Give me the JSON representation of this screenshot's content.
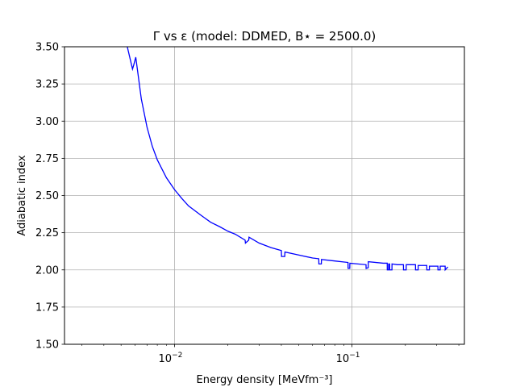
{
  "chart_data": {
    "type": "line",
    "title": "Γ vs ε (model: DDMED, B⋆ = 2500.0)",
    "xlabel": "Energy density [MeVfm⁻³]",
    "ylabel": "Adiabatic index",
    "xscale": "log",
    "xlim": [
      0.0024,
      0.43
    ],
    "ylim": [
      1.5,
      3.5
    ],
    "grid": true,
    "x_ticks": [
      {
        "value": 0.01,
        "base": "10",
        "exp": "−2"
      },
      {
        "value": 0.1,
        "base": "10",
        "exp": "−1"
      }
    ],
    "y_ticks": [
      "1.50",
      "1.75",
      "2.00",
      "2.25",
      "2.50",
      "2.75",
      "3.00",
      "3.25",
      "3.50"
    ],
    "series": [
      {
        "color": "#0000ff",
        "x": [
          0.00542,
          0.0058,
          0.0059,
          0.00605,
          0.0065,
          0.007,
          0.0075,
          0.008,
          0.009,
          0.01,
          0.011,
          0.012,
          0.014,
          0.016,
          0.018,
          0.02,
          0.022,
          0.025,
          0.0251,
          0.0262,
          0.0263,
          0.03,
          0.035,
          0.04,
          0.0401,
          0.0418,
          0.0419,
          0.05,
          0.06,
          0.065,
          0.0651,
          0.0672,
          0.0673,
          0.08,
          0.095,
          0.0951,
          0.0972,
          0.0973,
          0.12,
          0.1201,
          0.1235,
          0.1236,
          0.15,
          0.158,
          0.1581,
          0.1608,
          0.1609,
          0.163,
          0.1631,
          0.168,
          0.1681,
          0.18,
          0.195,
          0.1951,
          0.202,
          0.2021,
          0.228,
          0.2281,
          0.236,
          0.2361,
          0.264,
          0.2641,
          0.273,
          0.2731,
          0.305,
          0.3051,
          0.314,
          0.3141,
          0.335,
          0.3351,
          0.347
        ],
        "y": [
          3.5,
          3.35,
          3.38,
          3.43,
          3.15,
          2.96,
          2.83,
          2.74,
          2.62,
          2.54,
          2.48,
          2.43,
          2.37,
          2.32,
          2.29,
          2.26,
          2.24,
          2.2,
          2.18,
          2.2,
          2.22,
          2.18,
          2.15,
          2.13,
          2.09,
          2.09,
          2.12,
          2.1,
          2.08,
          2.075,
          2.04,
          2.04,
          2.07,
          2.06,
          2.05,
          2.01,
          2.01,
          2.045,
          2.035,
          2.01,
          2.015,
          2.055,
          2.045,
          2.045,
          2.0,
          2.0,
          2.04,
          2.04,
          2.0,
          2.0,
          2.04,
          2.035,
          2.035,
          2.0,
          2.0,
          2.035,
          2.035,
          2.0,
          2.0,
          2.03,
          2.03,
          2.0,
          2.0,
          2.025,
          2.025,
          2.0,
          2.0,
          2.025,
          2.025,
          2.0,
          2.02
        ]
      }
    ]
  }
}
